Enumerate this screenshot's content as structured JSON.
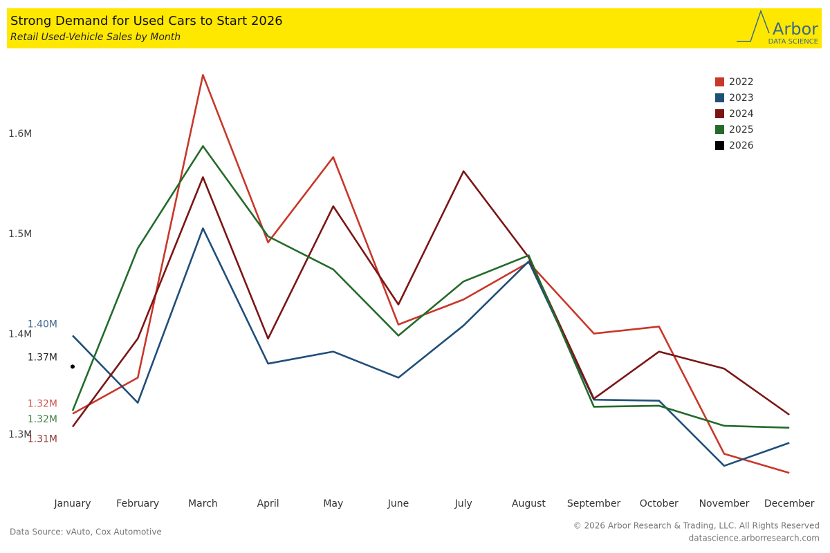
{
  "chart_data": {
    "type": "line",
    "title": "Strong Demand for Used Cars to Start 2026",
    "subtitle": "Retail Used-Vehicle Sales by Month",
    "logo_name": "Arbor",
    "logo_tagline": "DATA SCIENCE",
    "source": "Data Source: vAuto, Cox Automotive",
    "copyright": "© 2026 Arbor Research & Trading, LLC. All Rights Reserved",
    "website": "datascience.arborresearch.com",
    "categories": [
      "January",
      "February",
      "March",
      "April",
      "May",
      "June",
      "July",
      "August",
      "September",
      "October",
      "November",
      "December"
    ],
    "ylim": [
      1240000,
      1680000
    ],
    "yticks": [
      {
        "value": 1300000,
        "label": "1.3M"
      },
      {
        "value": 1400000,
        "label": "1.4M"
      },
      {
        "value": 1500000,
        "label": "1.5M"
      },
      {
        "value": 1600000,
        "label": "1.6M"
      }
    ],
    "grid": false,
    "legend": "top-right",
    "series": [
      {
        "name": "2022",
        "color": "#c8372a",
        "values": [
          1321000,
          1357000,
          1659000,
          1492000,
          1577000,
          1410000,
          1435000,
          1472000,
          1401000,
          1408000,
          1281000,
          1262000
        ],
        "value_labels": [
          "1.32M",
          null,
          null,
          null,
          null,
          null,
          null,
          null,
          null,
          null,
          null,
          null
        ]
      },
      {
        "name": "2023",
        "color": "#1f4e79",
        "values": [
          1399000,
          1332000,
          1506000,
          1371000,
          1383000,
          1357000,
          1409000,
          1473000,
          1335000,
          1334000,
          1269000,
          1292000
        ],
        "value_labels": [
          "1.40M",
          null,
          null,
          null,
          null,
          null,
          null,
          null,
          null,
          null,
          null,
          null
        ]
      },
      {
        "name": "2024",
        "color": "#7b1515",
        "values": [
          1308000,
          1396000,
          1557000,
          1396000,
          1528000,
          1430000,
          1563000,
          1477000,
          1336000,
          1383000,
          1366000,
          1320000
        ],
        "value_labels": [
          "1.31M",
          null,
          null,
          null,
          null,
          null,
          null,
          null,
          null,
          null,
          null,
          null
        ]
      },
      {
        "name": "2025",
        "color": "#236b2a",
        "values": [
          1324000,
          1486000,
          1588000,
          1498000,
          1465000,
          1399000,
          1453000,
          1479000,
          1328000,
          1329000,
          1309000,
          1307000
        ],
        "value_labels": [
          "1.32M",
          null,
          null,
          null,
          null,
          null,
          null,
          null,
          null,
          null,
          null,
          null
        ]
      },
      {
        "name": "2026",
        "color": "#000000",
        "values": [
          1368000,
          null,
          null,
          null,
          null,
          null,
          null,
          null,
          null,
          null,
          null,
          null
        ],
        "value_labels": [
          "1.37M",
          null,
          null,
          null,
          null,
          null,
          null,
          null,
          null,
          null,
          null,
          null
        ]
      }
    ]
  }
}
